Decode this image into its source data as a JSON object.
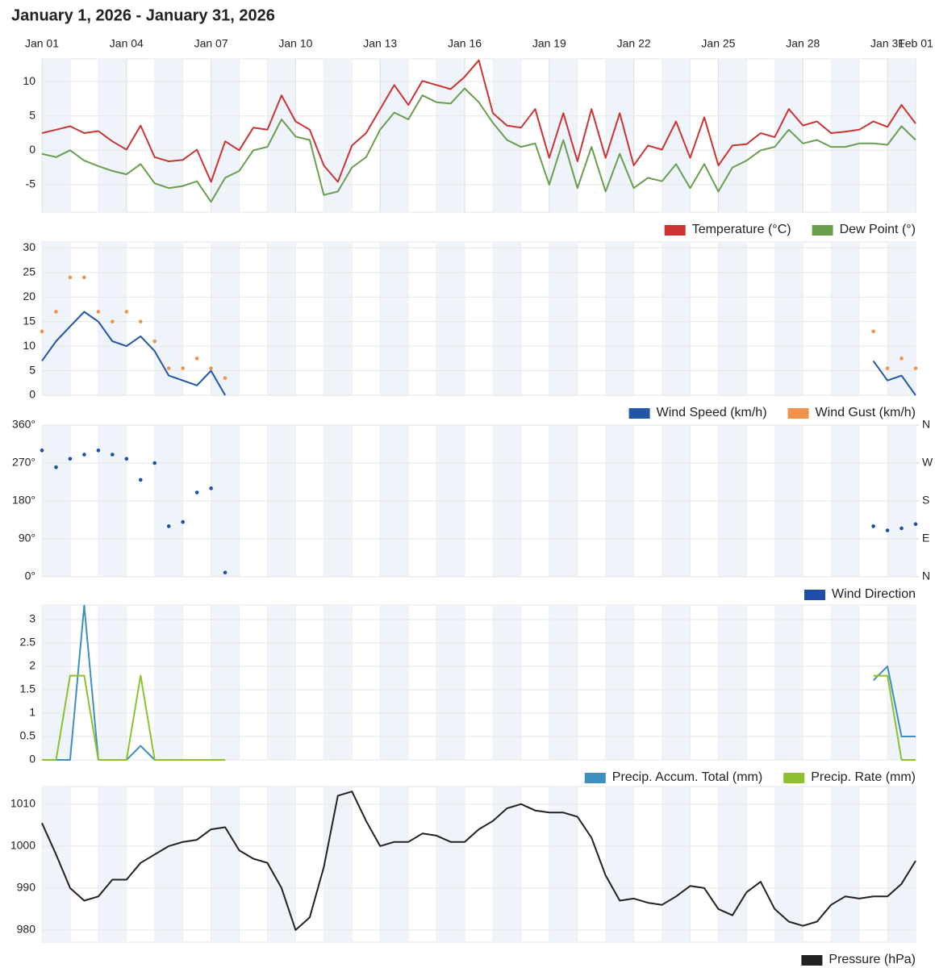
{
  "title": "January 1, 2026 - January 31, 2026",
  "chart_data": [
    {
      "type": "line",
      "x": [
        0,
        0.5,
        1,
        1.5,
        2,
        2.5,
        3,
        3.5,
        4,
        4.5,
        5,
        5.5,
        6,
        6.5,
        7,
        7.5,
        8,
        8.5,
        9,
        9.5,
        10,
        10.5,
        11,
        11.5,
        12,
        12.5,
        13,
        13.5,
        14,
        14.5,
        15,
        15.5,
        16,
        16.5,
        17,
        17.5,
        18,
        18.5,
        19,
        19.5,
        20,
        20.5,
        21,
        21.5,
        22,
        22.5,
        23,
        23.5,
        24,
        24.5,
        25,
        25.5,
        26,
        26.5,
        27,
        27.5,
        28,
        28.5,
        29,
        29.5,
        30,
        30.5,
        31
      ],
      "xlim": [
        0,
        31
      ],
      "xticks": [
        {
          "value": 0,
          "label": "Jan 01"
        },
        {
          "value": 3,
          "label": "Jan 04"
        },
        {
          "value": 6,
          "label": "Jan 07"
        },
        {
          "value": 9,
          "label": "Jan 10"
        },
        {
          "value": 12,
          "label": "Jan 13"
        },
        {
          "value": 15,
          "label": "Jan 16"
        },
        {
          "value": 18,
          "label": "Jan 19"
        },
        {
          "value": 21,
          "label": "Jan 22"
        },
        {
          "value": 24,
          "label": "Jan 25"
        },
        {
          "value": 27,
          "label": "Jan 28"
        },
        {
          "value": 30,
          "label": "Jan 31"
        },
        {
          "value": 31,
          "label": "Feb 01"
        }
      ],
      "ylim": [
        -9,
        13.3
      ],
      "yticks": [
        -5,
        0,
        5,
        10
      ],
      "grid": true,
      "series": [
        {
          "name": "Temperature (°C)",
          "color": "#cc3333",
          "values": [
            2.5,
            3,
            3.5,
            2.5,
            2.8,
            1.3,
            0.1,
            3.6,
            -1,
            -1.6,
            -1.4,
            0.1,
            -4.6,
            1.3,
            0,
            3.3,
            3,
            8,
            4.2,
            3,
            -2.2,
            -4.6,
            0.7,
            2.5,
            6,
            9.5,
            6.6,
            10.1,
            9.5,
            8.9,
            10.7,
            13.1,
            5.4,
            3.6,
            3.3,
            6,
            -1.1,
            5.4,
            -1.6,
            6,
            -1.1,
            5.4,
            -2.2,
            0.7,
            0.1,
            4.2,
            -1.1,
            4.8,
            -2.2,
            0.7,
            0.9,
            2.5,
            1.9,
            6,
            3.6,
            4.2,
            2.5,
            2.7,
            3,
            4.2,
            3.4,
            6.6,
            3.9
          ]
        },
        {
          "name": "Dew Point (°)",
          "color": "#6a9e4f",
          "values": [
            -0.5,
            -1,
            0,
            -1.5,
            -2.3,
            -3,
            -3.5,
            -2,
            -4.8,
            -5.5,
            -5.2,
            -4.5,
            -7.5,
            -4,
            -3,
            0,
            0.5,
            4.5,
            2,
            1.5,
            -6.5,
            -6,
            -2.5,
            -1,
            3,
            5.5,
            4.5,
            8,
            7,
            6.8,
            9,
            7,
            4,
            1.5,
            0.5,
            1,
            -5,
            1.5,
            -5.5,
            0.5,
            -6,
            -0.5,
            -5.5,
            -4,
            -4.5,
            -2,
            -5.5,
            -2,
            -6,
            -2.5,
            -1.5,
            0,
            0.5,
            3,
            1,
            1.5,
            0.5,
            0.5,
            1,
            1,
            0.8,
            3.5,
            1.5
          ]
        }
      ]
    },
    {
      "type": "line",
      "x": [
        0,
        0.5,
        1,
        1.5,
        2,
        2.5,
        3,
        3.5,
        4,
        4.5,
        5,
        5.5,
        6,
        6.5,
        7,
        7.5,
        8,
        8.5,
        9,
        9.5,
        10,
        10.5,
        11,
        11.5,
        12,
        12.5,
        13,
        13.5,
        14,
        14.5,
        15,
        15.5,
        16,
        16.5,
        17,
        17.5,
        18,
        18.5,
        19,
        19.5,
        20,
        20.5,
        21,
        21.5,
        22,
        22.5,
        23,
        23.5,
        24,
        24.5,
        25,
        25.5,
        26,
        26.5,
        27,
        27.5,
        28,
        28.5,
        29,
        29.5,
        30,
        30.5,
        31
      ],
      "xlim": [
        0,
        31
      ],
      "ylim": [
        0,
        31.2
      ],
      "yticks": [
        0,
        5,
        10,
        15,
        20,
        25,
        30
      ],
      "grid": true,
      "series": [
        {
          "name": "Wind Speed (km/h)",
          "color": "#2355a8",
          "values": [
            7,
            11,
            14,
            17,
            15,
            11,
            10,
            12,
            9,
            4,
            3,
            2,
            5,
            0,
            null,
            null,
            null,
            null,
            null,
            null,
            null,
            null,
            null,
            null,
            null,
            null,
            null,
            null,
            null,
            null,
            null,
            null,
            null,
            null,
            null,
            null,
            null,
            null,
            null,
            null,
            null,
            null,
            null,
            null,
            null,
            null,
            null,
            null,
            null,
            null,
            null,
            null,
            null,
            null,
            null,
            null,
            null,
            null,
            null,
            7,
            3,
            4,
            0
          ]
        },
        {
          "name": "Wind Gust (km/h)",
          "color": "#f0924a",
          "type": "scatter",
          "values": [
            13,
            17,
            24,
            24,
            17,
            15,
            17,
            15,
            11,
            5.5,
            5.5,
            7.5,
            5.5,
            3.5,
            null,
            null,
            null,
            null,
            null,
            null,
            null,
            null,
            null,
            null,
            null,
            null,
            null,
            null,
            null,
            null,
            null,
            null,
            null,
            null,
            null,
            null,
            null,
            null,
            null,
            null,
            null,
            null,
            null,
            null,
            null,
            null,
            null,
            null,
            null,
            null,
            null,
            null,
            null,
            null,
            null,
            null,
            null,
            null,
            null,
            13,
            5.5,
            7.5,
            5.5
          ]
        }
      ]
    },
    {
      "type": "scatter",
      "x": [
        0,
        0.5,
        1,
        1.5,
        2,
        2.5,
        3,
        3.5,
        4,
        4.5,
        5,
        5.5,
        6,
        6.5,
        7,
        7.5,
        8,
        8.5,
        9,
        9.5,
        10,
        10.5,
        11,
        11.5,
        12,
        12.5,
        13,
        13.5,
        14,
        14.5,
        15,
        15.5,
        16,
        16.5,
        17,
        17.5,
        18,
        18.5,
        19,
        19.5,
        20,
        20.5,
        21,
        21.5,
        22,
        22.5,
        23,
        23.5,
        24,
        24.5,
        25,
        25.5,
        26,
        26.5,
        27,
        27.5,
        28,
        28.5,
        29,
        29.5,
        30,
        30.5,
        31
      ],
      "xlim": [
        0,
        31
      ],
      "ylim": [
        0,
        360
      ],
      "yticks": [
        {
          "value": 0,
          "label": "0°"
        },
        {
          "value": 90,
          "label": "90°"
        },
        {
          "value": 180,
          "label": "180°"
        },
        {
          "value": 270,
          "label": "270°"
        },
        {
          "value": 360,
          "label": "360°"
        }
      ],
      "y2lim": [
        0,
        360
      ],
      "y2ticks": [
        {
          "value": 0,
          "label": "N"
        },
        {
          "value": 90,
          "label": "E"
        },
        {
          "value": 180,
          "label": "S"
        },
        {
          "value": 270,
          "label": "W"
        },
        {
          "value": 360,
          "label": "N"
        }
      ],
      "grid": true,
      "series": [
        {
          "name": "Wind Direction",
          "color": "#1f4ea8",
          "values": [
            300,
            260,
            280,
            290,
            300,
            290,
            280,
            230,
            270,
            120,
            130,
            200,
            210,
            10,
            null,
            null,
            null,
            null,
            null,
            null,
            null,
            null,
            null,
            null,
            null,
            null,
            null,
            null,
            null,
            null,
            null,
            null,
            null,
            null,
            null,
            null,
            null,
            null,
            null,
            null,
            null,
            null,
            null,
            null,
            null,
            null,
            null,
            null,
            null,
            null,
            null,
            null,
            null,
            null,
            null,
            null,
            null,
            null,
            null,
            120,
            110,
            115,
            125
          ]
        }
      ]
    },
    {
      "type": "line",
      "x": [
        0,
        0.5,
        1,
        1.5,
        2,
        2.5,
        3,
        3.5,
        4,
        4.5,
        5,
        5.5,
        6,
        6.5,
        7,
        7.5,
        8,
        8.5,
        9,
        9.5,
        10,
        10.5,
        11,
        11.5,
        12,
        12.5,
        13,
        13.5,
        14,
        14.5,
        15,
        15.5,
        16,
        16.5,
        17,
        17.5,
        18,
        18.5,
        19,
        19.5,
        20,
        20.5,
        21,
        21.5,
        22,
        22.5,
        23,
        23.5,
        24,
        24.5,
        25,
        25.5,
        26,
        26.5,
        27,
        27.5,
        28,
        28.5,
        29,
        29.5,
        30,
        30.5,
        31
      ],
      "xlim": [
        0,
        31
      ],
      "ylim": [
        0,
        3.31
      ],
      "yticks": [
        0,
        0.5,
        1,
        1.5,
        2,
        2.5,
        3
      ],
      "grid": true,
      "series": [
        {
          "name": "Precip. Accum. Total (mm)",
          "color": "#3d8fc0",
          "values": [
            0,
            0,
            0,
            3.3,
            0,
            0,
            0,
            0.3,
            0,
            0,
            0,
            0,
            0,
            0,
            null,
            null,
            null,
            null,
            null,
            null,
            null,
            null,
            null,
            null,
            null,
            null,
            null,
            null,
            null,
            null,
            null,
            null,
            null,
            null,
            null,
            null,
            null,
            null,
            null,
            null,
            null,
            null,
            null,
            null,
            null,
            null,
            null,
            null,
            null,
            null,
            null,
            null,
            null,
            null,
            null,
            null,
            null,
            null,
            null,
            1.7,
            2,
            0.5,
            0.5
          ]
        },
        {
          "name": "Precip. Rate (mm)",
          "color": "#8dbf2e",
          "values": [
            0,
            0,
            1.8,
            1.8,
            0,
            0,
            0,
            1.8,
            0,
            0,
            0,
            0,
            0,
            0,
            null,
            null,
            null,
            null,
            null,
            null,
            null,
            null,
            null,
            null,
            null,
            null,
            null,
            null,
            null,
            null,
            null,
            null,
            null,
            null,
            null,
            null,
            null,
            null,
            null,
            null,
            null,
            null,
            null,
            null,
            null,
            null,
            null,
            null,
            null,
            null,
            null,
            null,
            null,
            null,
            null,
            null,
            null,
            null,
            null,
            1.8,
            1.8,
            0,
            0
          ]
        }
      ]
    },
    {
      "type": "line",
      "x": [
        0,
        0.5,
        1,
        1.5,
        2,
        2.5,
        3,
        3.5,
        4,
        4.5,
        5,
        5.5,
        6,
        6.5,
        7,
        7.5,
        8,
        8.5,
        9,
        9.5,
        10,
        10.5,
        11,
        11.5,
        12,
        12.5,
        13,
        13.5,
        14,
        14.5,
        15,
        15.5,
        16,
        16.5,
        17,
        17.5,
        18,
        18.5,
        19,
        19.5,
        20,
        20.5,
        21,
        21.5,
        22,
        22.5,
        23,
        23.5,
        24,
        24.5,
        25,
        25.5,
        26,
        26.5,
        27,
        27.5,
        28,
        28.5,
        29,
        29.5,
        30,
        30.5,
        31
      ],
      "xlim": [
        0,
        31
      ],
      "ylim": [
        977.1,
        1014.2
      ],
      "yticks": [
        980,
        990,
        1000,
        1010
      ],
      "grid": true,
      "series": [
        {
          "name": "Pressure (hPa)",
          "color": "#222222",
          "values": [
            1005.5,
            998,
            990,
            987,
            988,
            992,
            992,
            996,
            998,
            1000,
            1001,
            1001.5,
            1004,
            1004.5,
            999,
            997,
            996,
            990,
            980,
            983,
            995,
            1012,
            1013,
            1006,
            1000,
            1001,
            1001,
            1003,
            1002.5,
            1001,
            1001,
            1004,
            1006,
            1009,
            1010,
            1008.5,
            1008,
            1008,
            1007,
            1002,
            993,
            987,
            987.5,
            986.5,
            986,
            988,
            990.5,
            990,
            985,
            983.5,
            989,
            991.5,
            985,
            982,
            981,
            982,
            986,
            988,
            987.5,
            988,
            988,
            991,
            996.5
          ]
        }
      ]
    }
  ]
}
